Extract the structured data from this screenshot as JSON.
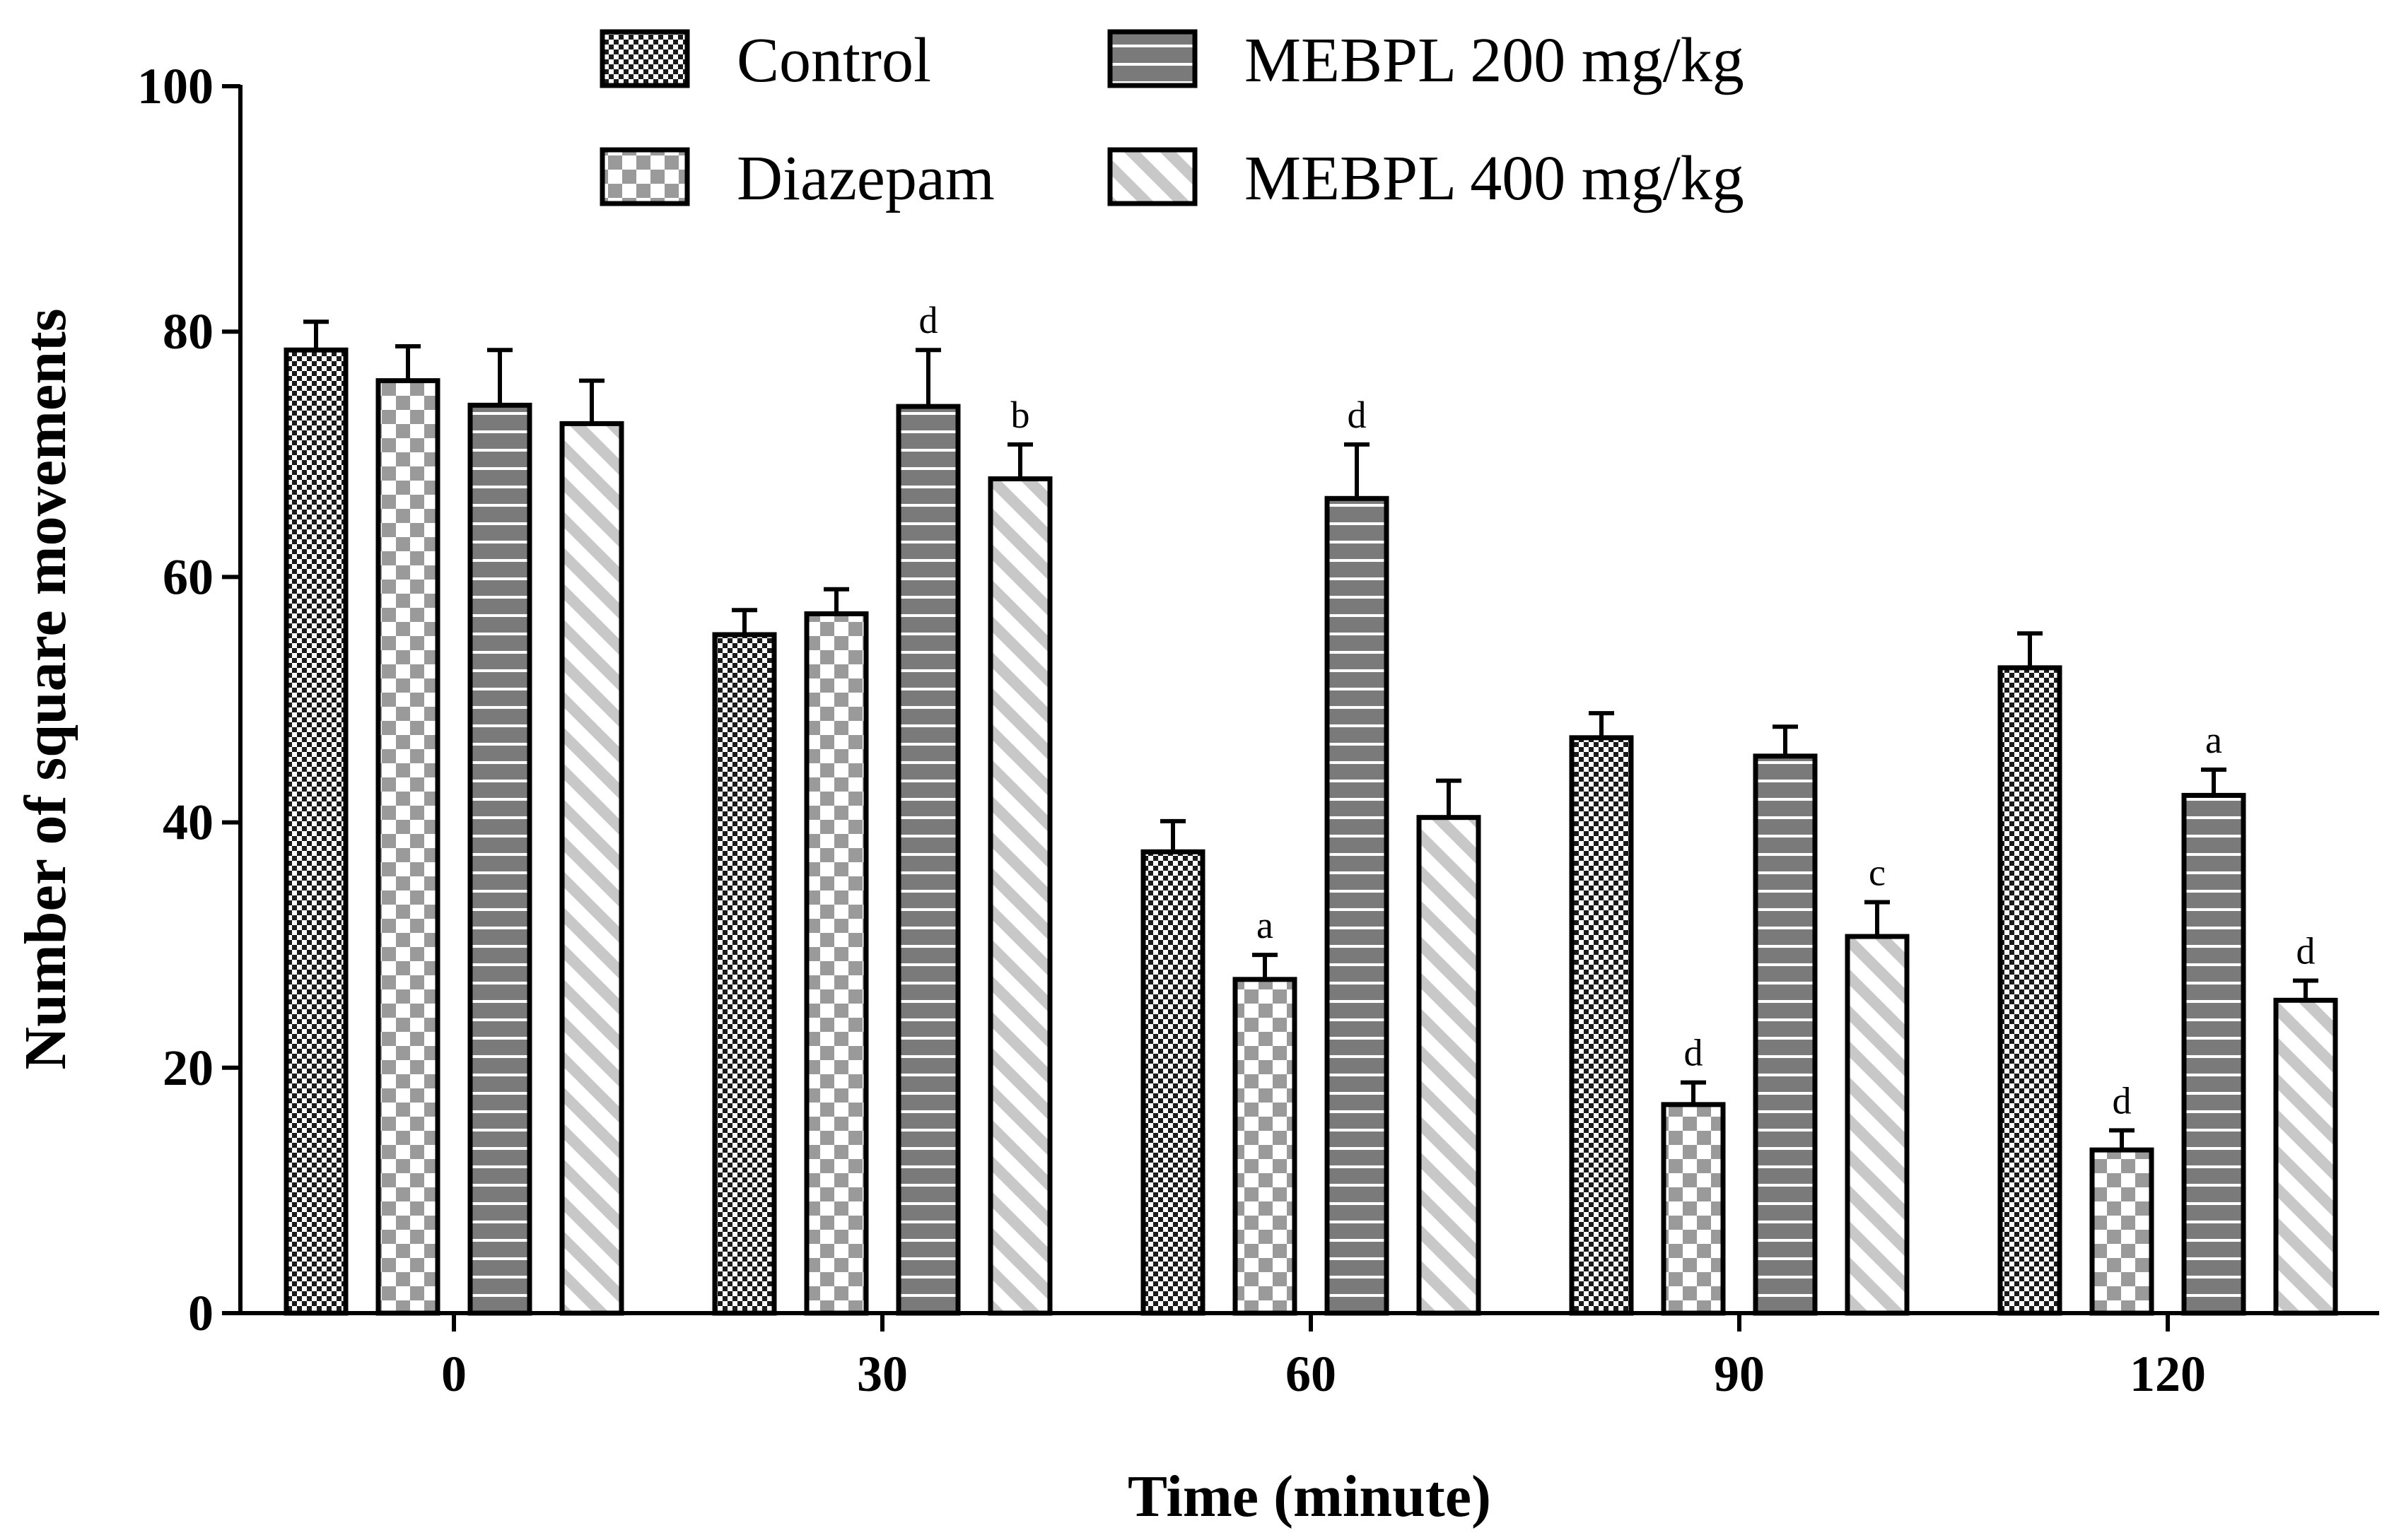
{
  "chart_data": {
    "type": "bar",
    "title": "",
    "xlabel": "Time (minute)",
    "ylabel": "Number of square movements",
    "ylim": [
      0,
      100
    ],
    "yticks": [
      0,
      20,
      40,
      60,
      80,
      100
    ],
    "categories": [
      "0",
      "30",
      "60",
      "90",
      "120"
    ],
    "legend_position": "top",
    "series": [
      {
        "name": "Control",
        "pattern": "checker-fine",
        "values": [
          78.5,
          55.3,
          37.6,
          46.9,
          52.6
        ],
        "errors": [
          2.3,
          2.0,
          2.5,
          2.0,
          2.8
        ],
        "annotations": [
          "",
          "",
          "",
          "",
          ""
        ]
      },
      {
        "name": "Diazepam",
        "pattern": "checker-coarse",
        "values": [
          76.0,
          57.0,
          27.2,
          17.0,
          13.3
        ],
        "errors": [
          2.8,
          2.0,
          2.0,
          1.8,
          1.6
        ],
        "annotations": [
          "",
          "",
          "a",
          "d",
          "d"
        ]
      },
      {
        "name": "MEBPL 200 mg/kg",
        "pattern": "horizontal-lines",
        "values": [
          74.0,
          73.9,
          66.4,
          45.4,
          42.2
        ],
        "errors": [
          4.5,
          4.6,
          4.4,
          2.4,
          2.1
        ],
        "annotations": [
          "",
          "d",
          "d",
          "",
          "a"
        ]
      },
      {
        "name": "MEBPL 400 mg/kg",
        "pattern": "diagonal-lines",
        "values": [
          72.5,
          68.0,
          40.4,
          30.7,
          25.5
        ],
        "errors": [
          3.5,
          2.8,
          3.0,
          2.8,
          1.6
        ],
        "annotations": [
          "",
          "b",
          "",
          "c",
          "d"
        ]
      }
    ]
  }
}
